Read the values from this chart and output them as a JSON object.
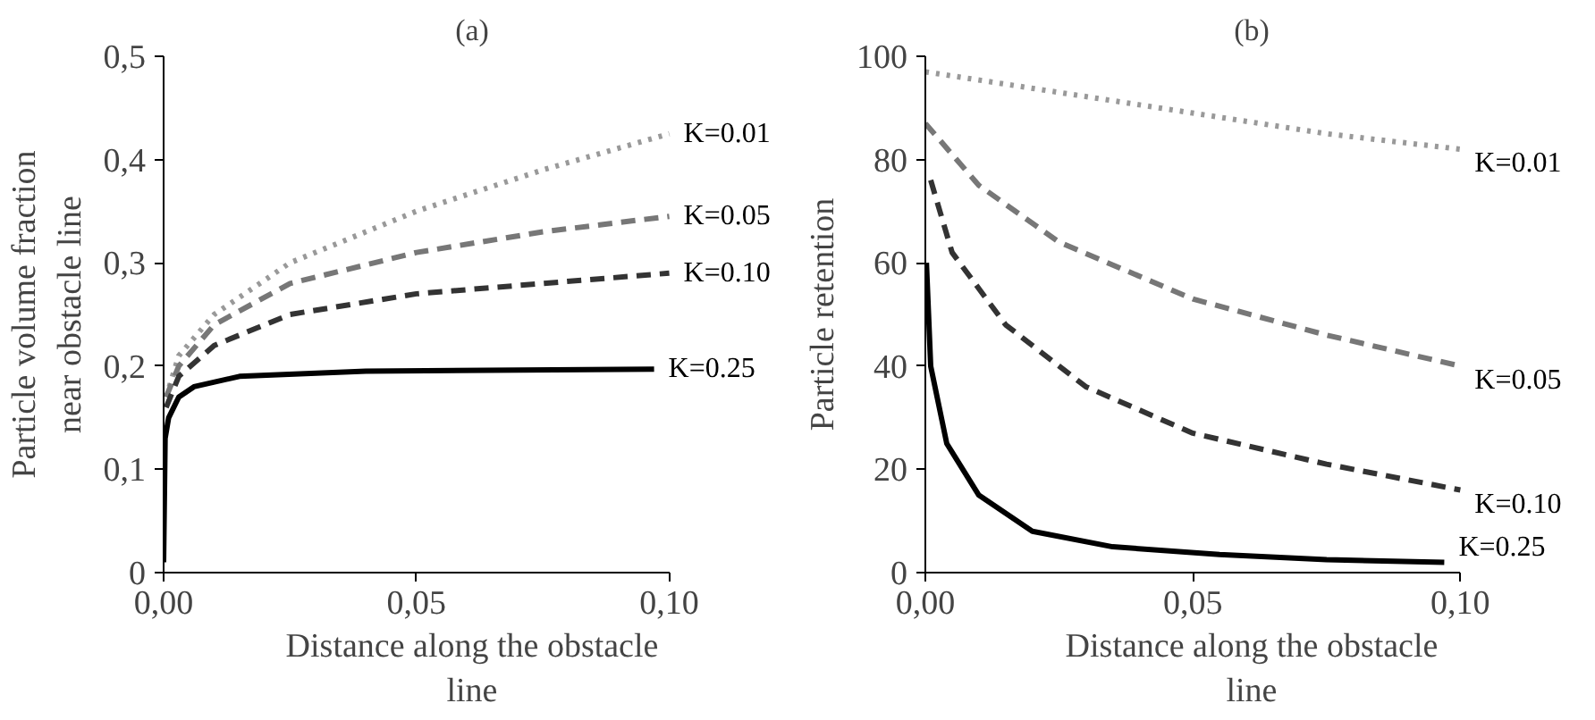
{
  "chart_data": [
    {
      "type": "line",
      "title": "(a)",
      "xlabel": "Distance along the obstacle line",
      "ylabel": "Particle volume fraction near obstacle line",
      "xlim": [
        0,
        0.1
      ],
      "ylim": [
        0,
        0.5
      ],
      "xticks": [
        {
          "value": 0,
          "label": "0,00"
        },
        {
          "value": 0.05,
          "label": "0,05"
        },
        {
          "value": 0.1,
          "label": "0,10"
        }
      ],
      "yticks": [
        0,
        {
          "value": 0.1,
          "label": "0,1"
        },
        {
          "value": 0.2,
          "label": "0,2"
        },
        {
          "value": 0.3,
          "label": "0,3"
        },
        {
          "value": 0.4,
          "label": "0,4"
        },
        {
          "value": 0.5,
          "label": "0,5"
        }
      ],
      "grid": false,
      "series": [
        {
          "name": "K=0.01",
          "color": "#999999",
          "line_style": "dotted",
          "x": [
            0.0005,
            0.003,
            0.01,
            0.025,
            0.05,
            0.075,
            0.1
          ],
          "values": [
            0.17,
            0.21,
            0.25,
            0.3,
            0.35,
            0.39,
            0.425
          ]
        },
        {
          "name": "K=0.05",
          "color": "#777777",
          "line_style": "dashed",
          "x": [
            0.0005,
            0.003,
            0.01,
            0.025,
            0.05,
            0.075,
            0.1
          ],
          "values": [
            0.17,
            0.2,
            0.24,
            0.28,
            0.31,
            0.33,
            0.345
          ]
        },
        {
          "name": "K=0.10",
          "color": "#333333",
          "line_style": "dashed",
          "x": [
            0.0005,
            0.003,
            0.01,
            0.025,
            0.05,
            0.075,
            0.1
          ],
          "values": [
            0.16,
            0.19,
            0.22,
            0.25,
            0.27,
            0.28,
            0.29
          ]
        },
        {
          "name": "K=0.25",
          "color": "#000000",
          "line_style": "solid",
          "x": [
            0,
            0.0003,
            0.001,
            0.003,
            0.006,
            0.015,
            0.04,
            0.097
          ],
          "values": [
            0.01,
            0.13,
            0.15,
            0.17,
            0.18,
            0.19,
            0.195,
            0.197
          ]
        }
      ]
    },
    {
      "type": "line",
      "title": "(b)",
      "xlabel": "Distance along the obstacle line",
      "ylabel": "Particle retention",
      "xlim": [
        0,
        0.1
      ],
      "ylim": [
        0,
        100
      ],
      "xticks": [
        {
          "value": 0,
          "label": "0,00"
        },
        {
          "value": 0.05,
          "label": "0,05"
        },
        {
          "value": 0.1,
          "label": "0,10"
        }
      ],
      "yticks": [
        0,
        20,
        40,
        60,
        80,
        100
      ],
      "grid": false,
      "series": [
        {
          "name": "K=0.01",
          "color": "#999999",
          "line_style": "dotted",
          "x": [
            0,
            0.025,
            0.05,
            0.075,
            0.1
          ],
          "values": [
            97,
            93,
            89,
            85,
            82
          ]
        },
        {
          "name": "K=0.05",
          "color": "#777777",
          "line_style": "dashed",
          "x": [
            0,
            0.01,
            0.025,
            0.05,
            0.075,
            0.1
          ],
          "values": [
            87,
            75,
            64,
            53,
            46,
            40
          ]
        },
        {
          "name": "K=0.10",
          "color": "#333333",
          "line_style": "dashed",
          "x": [
            0.001,
            0.005,
            0.015,
            0.03,
            0.05,
            0.075,
            0.1
          ],
          "values": [
            76,
            62,
            48,
            36,
            27,
            21,
            16
          ]
        },
        {
          "name": "K=0.25",
          "color": "#000000",
          "line_style": "solid",
          "x": [
            0.0002,
            0.001,
            0.004,
            0.01,
            0.02,
            0.035,
            0.055,
            0.075,
            0.097
          ],
          "values": [
            60,
            40,
            25,
            15,
            8,
            5,
            3.5,
            2.5,
            2
          ]
        }
      ]
    }
  ]
}
